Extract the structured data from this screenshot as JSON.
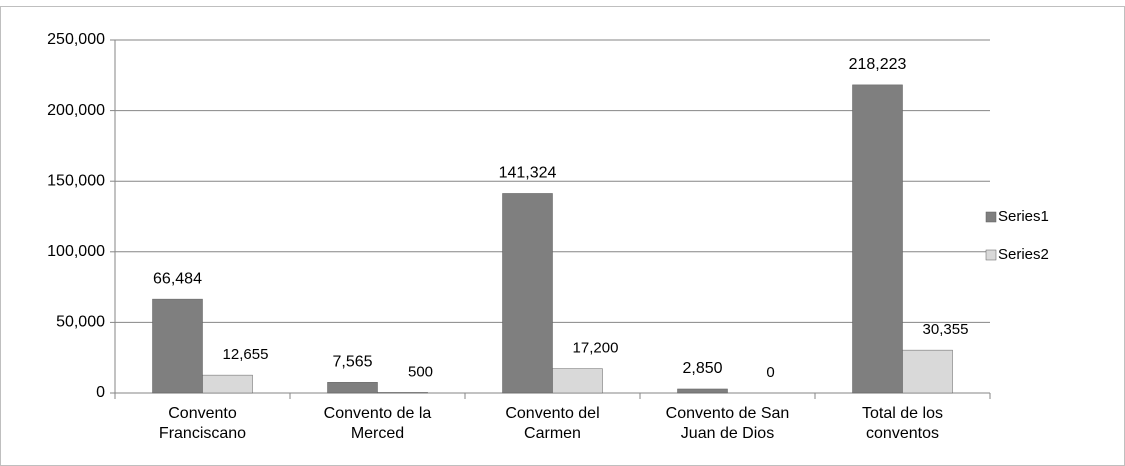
{
  "chart_data": {
    "type": "bar",
    "categories": [
      "Convento Franciscano",
      "Convento de la Merced",
      "Convento del Carmen",
      "Convento de San Juan de Dios",
      "Total de los conventos"
    ],
    "series": [
      {
        "name": "Series1",
        "color": "#7f7f7f",
        "values": [
          66484,
          7565,
          141324,
          2850,
          218223
        ],
        "value_labels": [
          "66,484",
          "7,565",
          "141,324",
          "2,850",
          "218,223"
        ]
      },
      {
        "name": "Series2",
        "color": "#d9d9d9",
        "values": [
          12655,
          500,
          17200,
          0,
          30355
        ],
        "value_labels": [
          "12,655",
          "500",
          "17,200",
          "0",
          "30,355"
        ]
      }
    ],
    "ylim": [
      0,
      250000
    ],
    "yticks": [
      0,
      {
        "value": 50000,
        "label": "50,000"
      },
      {
        "value": 100000,
        "label": "100,000"
      },
      {
        "value": 150000,
        "label": "150,000"
      },
      {
        "value": 200000,
        "label": "200,000"
      },
      {
        "value": 250000,
        "label": "250,000"
      }
    ],
    "grid": true,
    "legend": "right"
  }
}
